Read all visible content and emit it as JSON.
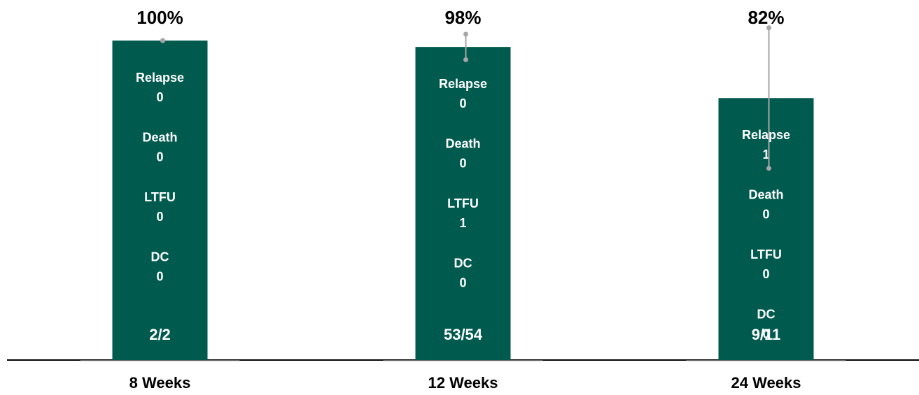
{
  "chart_data": {
    "type": "bar",
    "categories": [
      "8 Weeks",
      "12 Weeks",
      "24 Weeks"
    ],
    "values": [
      100,
      98,
      82
    ],
    "value_labels": [
      "100%",
      "98%",
      "82%"
    ],
    "errors": [
      0,
      4,
      22
    ],
    "color": "#005a4e",
    "error_color": "#a6a6a6",
    "ylim": [
      0,
      100
    ],
    "breakdown": [
      [
        {
          "label": "Relapse",
          "value": 0
        },
        {
          "label": "Death",
          "value": 0
        },
        {
          "label": "LTFU",
          "value": 0
        },
        {
          "label": "DC",
          "value": 0
        }
      ],
      [
        {
          "label": "Relapse",
          "value": 0
        },
        {
          "label": "Death",
          "value": 0
        },
        {
          "label": "LTFU",
          "value": 1
        },
        {
          "label": "DC",
          "value": 0
        }
      ],
      [
        {
          "label": "Relapse",
          "value": 1
        },
        {
          "label": "Death",
          "value": 0
        },
        {
          "label": "LTFU",
          "value": 0
        },
        {
          "label": "DC",
          "value": 0
        }
      ]
    ],
    "fractions": [
      "2/2",
      "53/54",
      "9/11"
    ]
  }
}
